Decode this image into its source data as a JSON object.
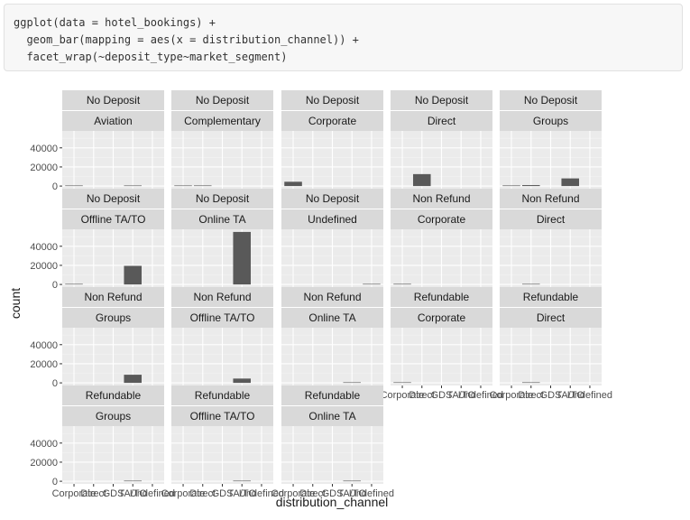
{
  "code": {
    "lines": [
      "ggplot(data = hotel_bookings) +",
      "  geom_bar(mapping = aes(x = distribution_channel)) +",
      "  facet_wrap(~deposit_type~market_segment)"
    ]
  },
  "colors": {
    "panel_bg": "#ebebeb",
    "strip_bg": "#d9d9d9",
    "grid_major": "#ffffff",
    "grid_minor": "#f3f3f3",
    "bar": "#595959",
    "text": "#4d4d4d",
    "axis_title": "#1a1a1a"
  },
  "chart_data": {
    "type": "bar",
    "xlabel": "distribution_channel",
    "ylabel": "count",
    "categories": [
      "Corporate",
      "Direct",
      "GDS",
      "TA/TO",
      "Undefined"
    ],
    "y_ticks": [
      0,
      20000,
      40000
    ],
    "y_tick_labels": [
      "0",
      "20000",
      "40000"
    ],
    "ylim": [
      0,
      60000
    ],
    "ncol": 5,
    "facets": [
      {
        "deposit": "No Deposit",
        "segment": "Aviation",
        "values": [
          200,
          0,
          0,
          30,
          0
        ]
      },
      {
        "deposit": "No Deposit",
        "segment": "Complementary",
        "values": [
          100,
          600,
          0,
          0,
          0
        ]
      },
      {
        "deposit": "No Deposit",
        "segment": "Corporate",
        "values": [
          4500,
          0,
          0,
          0,
          0
        ]
      },
      {
        "deposit": "No Deposit",
        "segment": "Direct",
        "values": [
          0,
          12500,
          0,
          0,
          0
        ]
      },
      {
        "deposit": "No Deposit",
        "segment": "Groups",
        "values": [
          600,
          1000,
          0,
          8000,
          0
        ]
      },
      {
        "deposit": "No Deposit",
        "segment": "Offline TA/TO",
        "values": [
          500,
          0,
          0,
          19500,
          0
        ]
      },
      {
        "deposit": "No Deposit",
        "segment": "Online TA",
        "values": [
          0,
          0,
          0,
          55000,
          0
        ]
      },
      {
        "deposit": "No Deposit",
        "segment": "Undefined",
        "values": [
          0,
          0,
          0,
          0,
          2
        ]
      },
      {
        "deposit": "Non Refund",
        "segment": "Corporate",
        "values": [
          600,
          0,
          0,
          0,
          0
        ]
      },
      {
        "deposit": "Non Refund",
        "segment": "Direct",
        "values": [
          0,
          100,
          0,
          0,
          0
        ]
      },
      {
        "deposit": "Non Refund",
        "segment": "Groups",
        "values": [
          0,
          0,
          0,
          8500,
          0
        ]
      },
      {
        "deposit": "Non Refund",
        "segment": "Offline TA/TO",
        "values": [
          0,
          0,
          0,
          4500,
          0
        ]
      },
      {
        "deposit": "Non Refund",
        "segment": "Online TA",
        "values": [
          0,
          0,
          0,
          50,
          0
        ]
      },
      {
        "deposit": "Refundable",
        "segment": "Corporate",
        "values": [
          20,
          0,
          0,
          0,
          0
        ]
      },
      {
        "deposit": "Refundable",
        "segment": "Direct",
        "values": [
          0,
          20,
          0,
          0,
          0
        ]
      },
      {
        "deposit": "Refundable",
        "segment": "Groups",
        "values": [
          0,
          0,
          0,
          80,
          0
        ]
      },
      {
        "deposit": "Refundable",
        "segment": "Offline TA/TO",
        "values": [
          0,
          0,
          0,
          40,
          0
        ]
      },
      {
        "deposit": "Refundable",
        "segment": "Online TA",
        "values": [
          0,
          0,
          0,
          10,
          0
        ]
      }
    ]
  }
}
